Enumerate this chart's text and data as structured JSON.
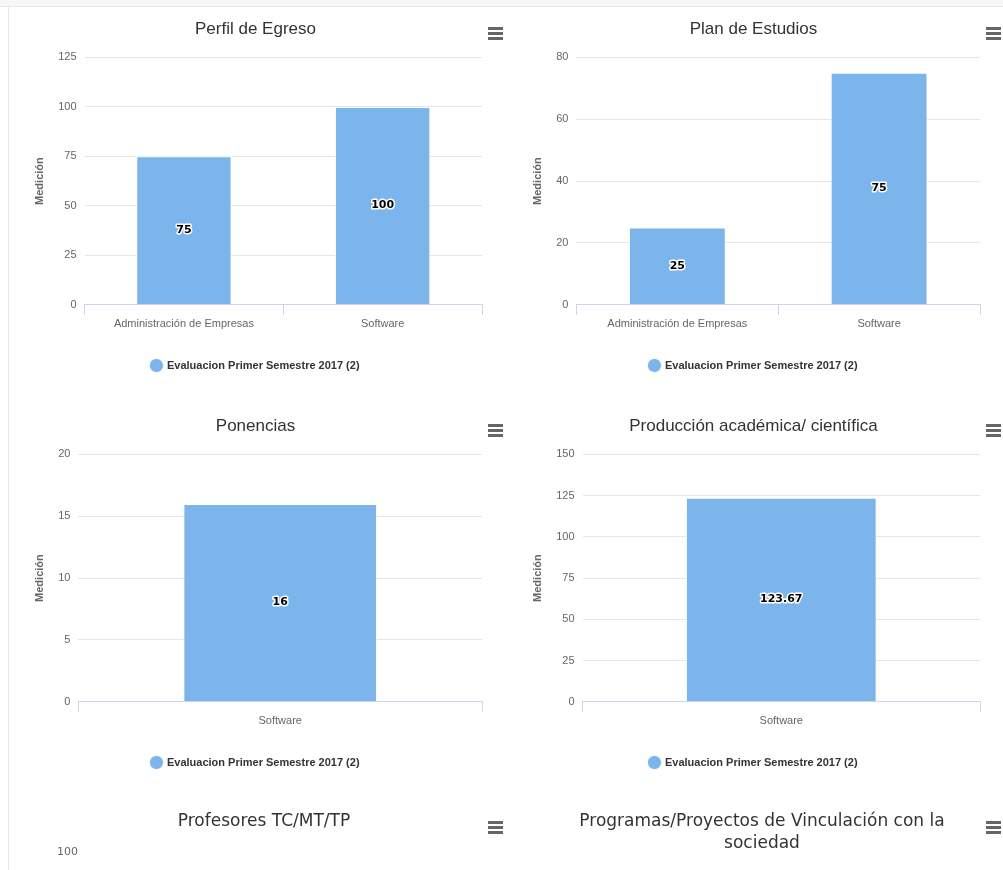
{
  "chart_data": [
    {
      "type": "bar",
      "title": "Perfil de Egreso",
      "categories": [
        "Administración de Empresas",
        "Software"
      ],
      "ylabel": "Medición",
      "ylim": [
        0,
        125
      ],
      "yticks": [
        0,
        25,
        50,
        75,
        100,
        125
      ],
      "grid": "y",
      "legend": "bottom",
      "data_labels": true,
      "series": [
        {
          "name": "Evaluacion Primer Semestre 2017 (2)",
          "color": "#7cb5ec",
          "values": [
            75,
            100
          ]
        }
      ]
    },
    {
      "type": "bar",
      "title": "Plan de Estudios",
      "categories": [
        "Administración de Empresas",
        "Software"
      ],
      "ylabel": "Medición",
      "ylim": [
        0,
        80
      ],
      "yticks": [
        0,
        20,
        40,
        60,
        80
      ],
      "grid": "y",
      "legend": "bottom",
      "data_labels": true,
      "series": [
        {
          "name": "Evaluacion Primer Semestre 2017 (2)",
          "color": "#7cb5ec",
          "values": [
            25,
            75
          ]
        }
      ]
    },
    {
      "type": "bar",
      "title": "Ponencias",
      "categories": [
        "Software"
      ],
      "ylabel": "Medición",
      "ylim": [
        0,
        20
      ],
      "yticks": [
        0,
        5,
        10,
        15,
        20
      ],
      "grid": "y",
      "legend": "bottom",
      "data_labels": true,
      "series": [
        {
          "name": "Evaluacion Primer Semestre 2017 (2)",
          "color": "#7cb5ec",
          "values": [
            16
          ]
        }
      ]
    },
    {
      "type": "bar",
      "title": "Producción académica/ científica",
      "categories": [
        "Software"
      ],
      "ylabel": "Medición",
      "ylim": [
        0,
        150
      ],
      "yticks": [
        0,
        25,
        50,
        75,
        100,
        125,
        150
      ],
      "grid": "y",
      "legend": "bottom",
      "data_labels": true,
      "series": [
        {
          "name": "Evaluacion Primer Semestre 2017 (2)",
          "color": "#7cb5ec",
          "values": [
            123.67
          ]
        }
      ]
    },
    {
      "type": "other",
      "title": "Profesores TC/MT/TP",
      "annotations": [
        "100"
      ]
    },
    {
      "type": "other",
      "title": "Programas/Proyectos de Vinculación con la sociedad"
    }
  ]
}
